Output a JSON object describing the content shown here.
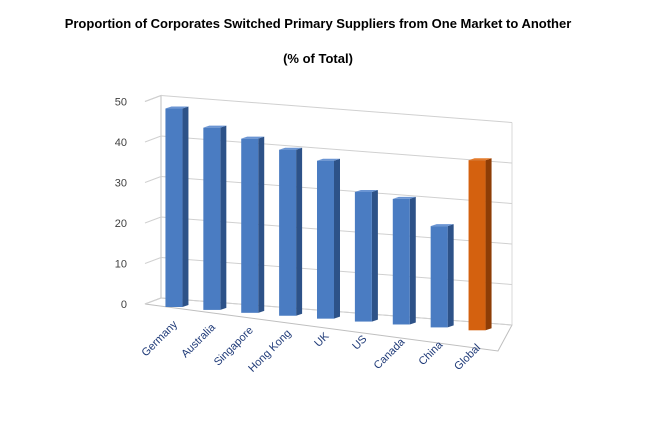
{
  "chart_data": {
    "type": "bar",
    "title": "Proportion of Corporates Switched Primary Suppliers from One Market to Another",
    "subtitle": "(% of Total)",
    "categories": [
      "Germany",
      "Australia",
      "Singapore",
      "Hong Kong",
      "UK",
      "US",
      "Canada",
      "China",
      "Global"
    ],
    "values": [
      49,
      45,
      43,
      41,
      39,
      32,
      31,
      25,
      42
    ],
    "ylim": [
      0,
      50
    ],
    "yticks": [
      0,
      10,
      20,
      30,
      40,
      50
    ],
    "bar_color": "#4a7cc2",
    "highlight_color": "#d4610f",
    "highlight_category": "Global",
    "grid": true,
    "legend": "none",
    "style": "3d-column"
  }
}
